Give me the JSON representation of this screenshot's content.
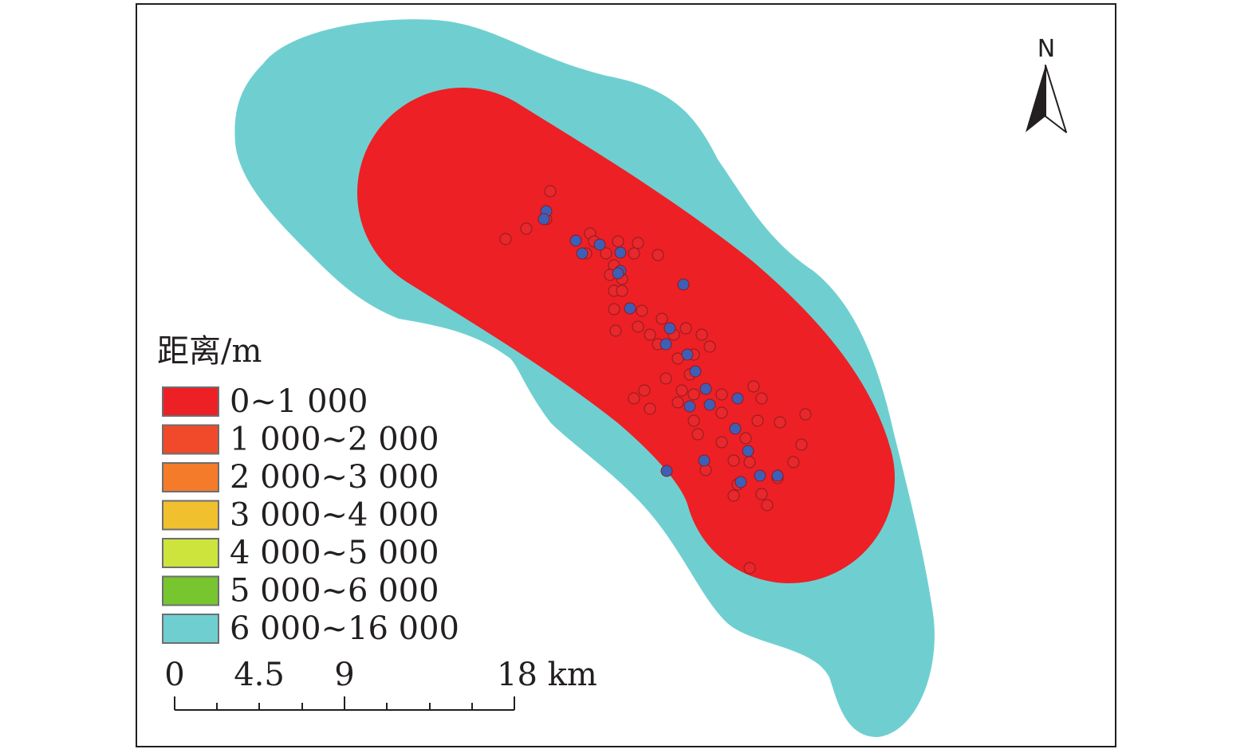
{
  "north_arrow": {
    "label": "N",
    "icon": "north-arrow-icon"
  },
  "legend": {
    "title": "距离/m",
    "items": [
      {
        "label": "0~1 000",
        "color": "#ed2025"
      },
      {
        "label": "1 000~2 000",
        "color": "#f04a2a"
      },
      {
        "label": "2 000~3 000",
        "color": "#f47b2a"
      },
      {
        "label": "3 000~4 000",
        "color": "#f0c02e"
      },
      {
        "label": "4 000~5 000",
        "color": "#cde43c"
      },
      {
        "label": "5 000~6 000",
        "color": "#77c52f"
      },
      {
        "label": "6 000~16 000",
        "color": "#6fcfd0"
      }
    ]
  },
  "scale_bar": {
    "ticks": [
      "0",
      "4.5",
      "9",
      "18 km"
    ]
  },
  "point_colors": {
    "red": "#e8282c",
    "blue": "#3d5fb8"
  }
}
